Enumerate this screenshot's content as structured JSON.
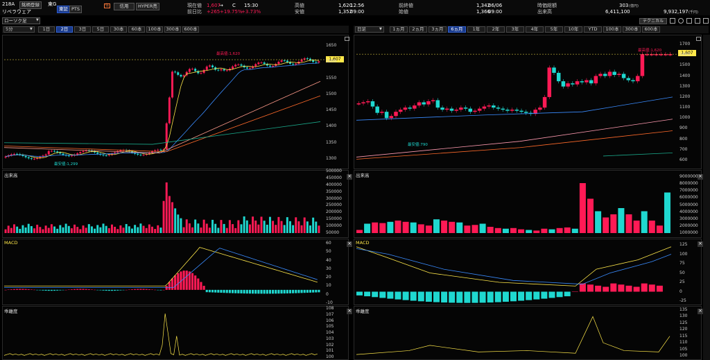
{
  "header": {
    "code": "218A",
    "tag1": "銘柄登録",
    "market": "東G",
    "tab_tosho": "東証",
    "tab_pts": "PTS",
    "company": "リベラウェア",
    "badge": "信",
    "tab_shinyo": "信用",
    "tab_hyper": "HYPER売",
    "cur_label": "現在値",
    "cur_val": "1,607",
    "cur_arrow": "→",
    "cur_c": "C",
    "cur_time": "15:30",
    "diff_label": "前日比",
    "diff_val": "+265",
    "diff_pct": "+19.75%",
    "diff_pct2": "+3.73%",
    "high_label": "高値",
    "high_val": "1,620",
    "high_time": "12:56",
    "low_label": "安値",
    "low_val": "1,352",
    "low_time": "09:00",
    "prev_label": "前終値",
    "prev_val": "1,342",
    "prev_date": "06/06",
    "open_label": "始値",
    "open_val": "1,366",
    "open_time": "09:00",
    "mcap_label": "時価総額",
    "mcap_val": "303",
    "mcap_unit": "(億円)",
    "vol_label": "出来高",
    "vol_val": "6,411,100",
    "turn_val": "9,932,197",
    "turn_unit": "(千円)",
    "tech_btn": "テクニカル"
  },
  "left": {
    "chart_type": "ローソク足",
    "interval": "5分",
    "ranges": [
      "1日",
      "2日",
      "3日",
      "5日",
      "30本",
      "60本",
      "100本",
      "300本",
      "600本"
    ],
    "selected": "2日",
    "price_tag": "1,607",
    "high_note": "最高値:1,620",
    "low_note": "最安値:1,299",
    "price_ticks": [
      "1650",
      "1600",
      "1550",
      "1500",
      "1450",
      "1400",
      "1350",
      "1300"
    ],
    "vol_title": "出来高",
    "vol_ticks": [
      "500000",
      "450000",
      "400000",
      "350000",
      "300000",
      "250000",
      "200000",
      "150000",
      "100000",
      "50000"
    ],
    "macd_title": "MACD",
    "macd_ticks": [
      "60",
      "50",
      "40",
      "30",
      "20",
      "10",
      "0",
      "-10"
    ],
    "sub_title": "乖離度",
    "sub_ticks": [
      "108",
      "107",
      "106",
      "105",
      "104",
      "103",
      "102",
      "101",
      "100"
    ]
  },
  "right": {
    "interval": "日足",
    "ranges": [
      "1ヵ月",
      "2ヵ月",
      "3ヵ月",
      "6ヵ月",
      "1年",
      "2年",
      "3年",
      "4年",
      "5年",
      "10年",
      "YTD",
      "100本",
      "300本",
      "600本"
    ],
    "selected": "6ヵ月",
    "price_tag": "1,607",
    "high_note": "最高値:1,620",
    "low_note": "最安値:790",
    "price_ticks": [
      "1700",
      "1600",
      "1500",
      "1400",
      "1300",
      "1200",
      "1100",
      "1000",
      "900",
      "800",
      "700",
      "600"
    ],
    "vol_title": "出来高",
    "vol_ticks": [
      "9000000",
      "8000000",
      "7000000",
      "6000000",
      "5000000",
      "4000000",
      "3000000",
      "2000000",
      "1000000"
    ],
    "macd_title": "MACD",
    "macd_ticks": [
      "125",
      "100",
      "75",
      "50",
      "25",
      "0",
      "-25"
    ],
    "sub_title": "乖離度",
    "sub_ticks": [
      "135",
      "130",
      "125",
      "120",
      "115",
      "110",
      "105",
      "100"
    ]
  },
  "colors": {
    "up": "#ff1a55",
    "down": "#1fd8d0",
    "bg": "#000000",
    "accent_yellow": "#ffe84a"
  }
}
